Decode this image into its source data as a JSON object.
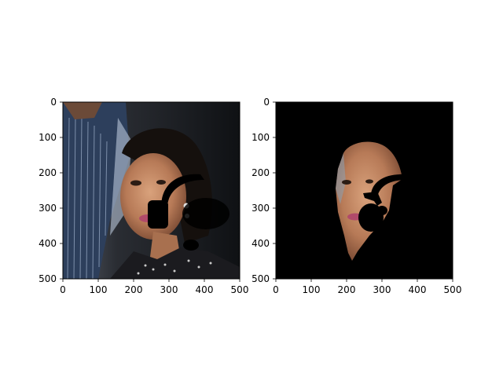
{
  "chart_data": [
    {
      "type": "image",
      "panel": "left",
      "content": "photo of a woman with headphones mark, man in striped shirt on left",
      "xlim": [
        0,
        500
      ],
      "ylim": [
        500,
        0
      ],
      "xticks": [
        0,
        100,
        200,
        300,
        400,
        500
      ],
      "yticks": [
        0,
        100,
        200,
        300,
        400,
        500
      ],
      "xtick_labels": [
        "0",
        "100",
        "200",
        "300",
        "400",
        "500"
      ],
      "ytick_labels": [
        "0",
        "100",
        "200",
        "300",
        "400",
        "500"
      ]
    },
    {
      "type": "image",
      "panel": "right",
      "content": "segmented face region on black background with headphones mark",
      "xlim": [
        0,
        500
      ],
      "ylim": [
        500,
        0
      ],
      "xticks": [
        0,
        100,
        200,
        300,
        400,
        500
      ],
      "yticks": [
        0,
        100,
        200,
        300,
        400,
        500
      ],
      "xtick_labels": [
        "0",
        "100",
        "200",
        "300",
        "400",
        "500"
      ],
      "ytick_labels": [
        "0",
        "100",
        "200",
        "300",
        "400",
        "500"
      ]
    }
  ]
}
